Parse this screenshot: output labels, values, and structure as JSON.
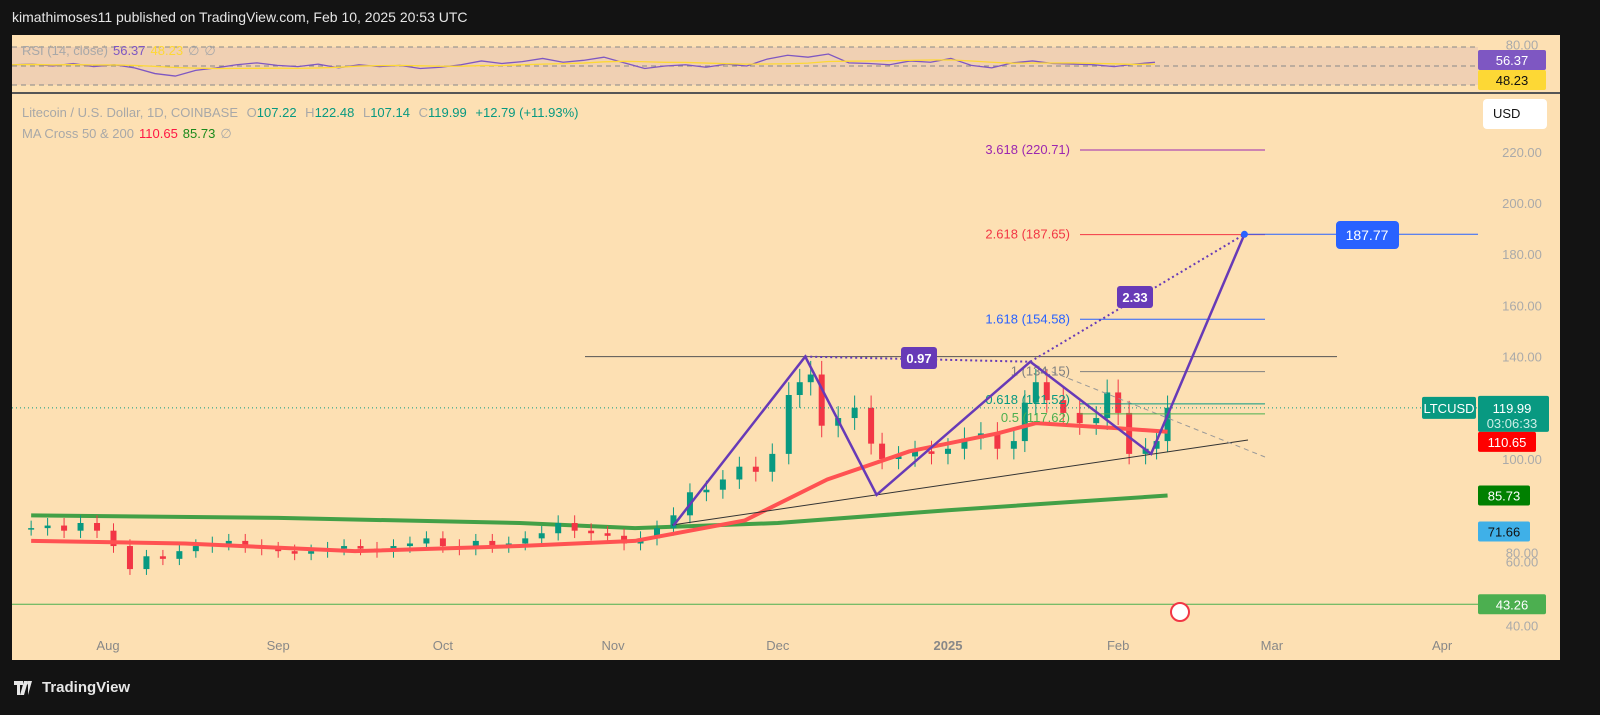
{
  "header": {
    "publisher": "kimathimoses11 published on TradingView.com, Feb 10, 2025 20:53 UTC"
  },
  "footer": {
    "brand": "TradingView",
    "logo_icon": "tradingview-logo-icon"
  },
  "rsi": {
    "label": "RSI (14, close)",
    "value": "56.37",
    "ma_value": "48.23",
    "extra1": "∅",
    "extra2": "∅",
    "axis_top": "80.00",
    "color": "#7e57c2",
    "ma_color": "#fdd835",
    "values": [
      52,
      53,
      50,
      54,
      49,
      52,
      47,
      38,
      34,
      43,
      47,
      52,
      55,
      51,
      49,
      53,
      47,
      52,
      49,
      51,
      46,
      48,
      52,
      58,
      54,
      57,
      62,
      56,
      59,
      64,
      55,
      46,
      50,
      52,
      48,
      53,
      50,
      61,
      67,
      64,
      69,
      55,
      54,
      52,
      58,
      56,
      62,
      51,
      47,
      55,
      58,
      54,
      53,
      52,
      49,
      53,
      56
    ]
  },
  "symbol": {
    "name": "Litecoin / U.S. Dollar, 1D, COINBASE",
    "open_label": "O",
    "open": "107.22",
    "high_label": "H",
    "high": "122.48",
    "low_label": "L",
    "low": "107.14",
    "close_label": "C",
    "close": "119.99",
    "change": "+12.79 (+11.93%)",
    "ticker": "LTCUSD",
    "countdown": "03:06:33"
  },
  "ma": {
    "label": "MA Cross 50 & 200",
    "ma50": "110.65",
    "ma200": "85.73",
    "extra": "∅",
    "ma50_color": "#ff5252",
    "ma200_color": "#43a047"
  },
  "currency": "USD",
  "colors": {
    "background": "#fde0b3",
    "up": "#089981",
    "down": "#f23645",
    "pattern": "#673ab7"
  },
  "chart_data": {
    "type": "candlestick",
    "title": "Litecoin / U.S. Dollar, 1D, COINBASE",
    "ylim": [
      35,
      235
    ],
    "y_ticks": [
      "40.00",
      "60.00",
      "80.00",
      "100.00",
      "140.00",
      "160.00",
      "180.00",
      "200.00",
      "220.00"
    ],
    "x_ticks": [
      {
        "label": "Aug",
        "d": "2024-08-01"
      },
      {
        "label": "Sep",
        "d": "2024-09-01"
      },
      {
        "label": "Oct",
        "d": "2024-10-01"
      },
      {
        "label": "Nov",
        "d": "2024-11-01"
      },
      {
        "label": "Dec",
        "d": "2024-12-01"
      },
      {
        "label": "2025",
        "d": "2025-01-01"
      },
      {
        "label": "Feb",
        "d": "2025-02-01"
      },
      {
        "label": "Mar",
        "d": "2025-03-01"
      },
      {
        "label": "Apr",
        "d": "2025-04-01"
      }
    ],
    "closes": [
      [
        "2024-07-18",
        73
      ],
      [
        "2024-07-21",
        74
      ],
      [
        "2024-07-24",
        72
      ],
      [
        "2024-07-27",
        75
      ],
      [
        "2024-07-30",
        72
      ],
      [
        "2024-08-02",
        66
      ],
      [
        "2024-08-05",
        57
      ],
      [
        "2024-08-08",
        62
      ],
      [
        "2024-08-11",
        61
      ],
      [
        "2024-08-14",
        64
      ],
      [
        "2024-08-17",
        66
      ],
      [
        "2024-08-20",
        67
      ],
      [
        "2024-08-23",
        68
      ],
      [
        "2024-08-26",
        66
      ],
      [
        "2024-08-29",
        65
      ],
      [
        "2024-09-01",
        64
      ],
      [
        "2024-09-04",
        63
      ],
      [
        "2024-09-07",
        64
      ],
      [
        "2024-09-10",
        65
      ],
      [
        "2024-09-13",
        66
      ],
      [
        "2024-09-16",
        65
      ],
      [
        "2024-09-19",
        64
      ],
      [
        "2024-09-22",
        66
      ],
      [
        "2024-09-25",
        67
      ],
      [
        "2024-09-28",
        69
      ],
      [
        "2024-10-01",
        66
      ],
      [
        "2024-10-04",
        65
      ],
      [
        "2024-10-07",
        68
      ],
      [
        "2024-10-10",
        66
      ],
      [
        "2024-10-13",
        67
      ],
      [
        "2024-10-16",
        69
      ],
      [
        "2024-10-19",
        71
      ],
      [
        "2024-10-22",
        75
      ],
      [
        "2024-10-25",
        72
      ],
      [
        "2024-10-28",
        71
      ],
      [
        "2024-10-31",
        70
      ],
      [
        "2024-11-03",
        67
      ],
      [
        "2024-11-06",
        69
      ],
      [
        "2024-11-09",
        73
      ],
      [
        "2024-11-12",
        78
      ],
      [
        "2024-11-15",
        87
      ],
      [
        "2024-11-18",
        88
      ],
      [
        "2024-11-21",
        92
      ],
      [
        "2024-11-24",
        97
      ],
      [
        "2024-11-27",
        95
      ],
      [
        "2024-11-30",
        102
      ],
      [
        "2024-12-03",
        125
      ],
      [
        "2024-12-05",
        130
      ],
      [
        "2024-12-07",
        133
      ],
      [
        "2024-12-09",
        113
      ],
      [
        "2024-12-12",
        116
      ],
      [
        "2024-12-15",
        120
      ],
      [
        "2024-12-18",
        106
      ],
      [
        "2024-12-20",
        100
      ],
      [
        "2024-12-23",
        101
      ],
      [
        "2024-12-26",
        103
      ],
      [
        "2024-12-29",
        102
      ],
      [
        "2025-01-01",
        104
      ],
      [
        "2025-01-04",
        108
      ],
      [
        "2025-01-07",
        110
      ],
      [
        "2025-01-10",
        104
      ],
      [
        "2025-01-13",
        107
      ],
      [
        "2025-01-15",
        122
      ],
      [
        "2025-01-17",
        130
      ],
      [
        "2025-01-19",
        123
      ],
      [
        "2025-01-22",
        118
      ],
      [
        "2025-01-25",
        114
      ],
      [
        "2025-01-28",
        116
      ],
      [
        "2025-01-30",
        126
      ],
      [
        "2025-02-01",
        118
      ],
      [
        "2025-02-03",
        102
      ],
      [
        "2025-02-06",
        104
      ],
      [
        "2025-02-08",
        107
      ],
      [
        "2025-02-10",
        119.99
      ]
    ],
    "ma50": [
      [
        "2024-07-18",
        68
      ],
      [
        "2024-08-15",
        67
      ],
      [
        "2024-09-15",
        64
      ],
      [
        "2024-10-15",
        66
      ],
      [
        "2024-11-05",
        68
      ],
      [
        "2024-11-25",
        76
      ],
      [
        "2024-12-10",
        92
      ],
      [
        "2024-12-25",
        103
      ],
      [
        "2025-01-10",
        110
      ],
      [
        "2025-01-17",
        114
      ],
      [
        "2025-02-01",
        112
      ],
      [
        "2025-02-10",
        110.65
      ]
    ],
    "ma200": [
      [
        "2024-07-18",
        78
      ],
      [
        "2024-09-01",
        77
      ],
      [
        "2024-10-15",
        75
      ],
      [
        "2024-11-05",
        73
      ],
      [
        "2024-12-01",
        75
      ],
      [
        "2025-01-01",
        80
      ],
      [
        "2025-02-10",
        85.73
      ]
    ],
    "pattern": {
      "points": [
        [
          "2024-11-12",
          74
        ],
        [
          "2024-12-06",
          140
        ],
        [
          "2024-12-19",
          86
        ],
        [
          "2025-01-16",
          138
        ],
        [
          "2025-02-07",
          102
        ],
        [
          "2025-02-24",
          187.77
        ]
      ],
      "target": "187.77",
      "ratio_1": "0.97",
      "ratio_2": "2.33"
    },
    "fib_levels": [
      {
        "label": "3.618 (220.71)",
        "price": 220.71,
        "color": "#9c27b0"
      },
      {
        "label": "2.618 (187.65)",
        "price": 187.65,
        "color": "#f23645"
      },
      {
        "label": "1.618 (154.58)",
        "price": 154.58,
        "color": "#2962ff"
      },
      {
        "label": "1 (134.15)",
        "price": 134.15,
        "color": "#808080"
      },
      {
        "label": "0.618 (121.52)",
        "price": 121.52,
        "color": "#089981"
      },
      {
        "label": "0.5 (117.62)",
        "price": 117.62,
        "color": "#4caf50"
      }
    ],
    "horizontal_lines": [
      {
        "price": 140,
        "color": "#555555"
      },
      {
        "price": 43.26,
        "color": "#4caf50",
        "label": "43.26"
      }
    ],
    "crosshair_label": "71.66"
  }
}
